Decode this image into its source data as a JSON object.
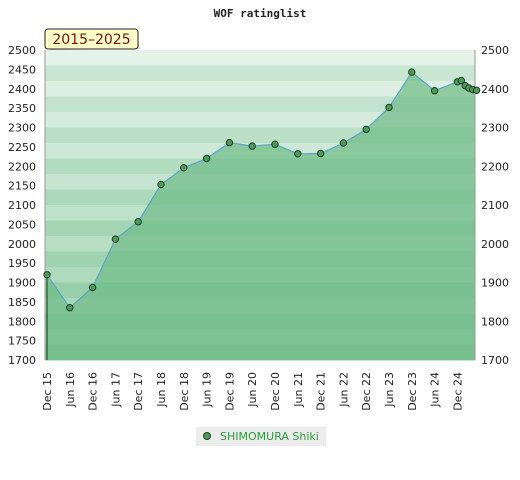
{
  "chart_data": {
    "type": "area",
    "title": "WOF ratinglist",
    "range_label": "2015–2025",
    "xlabel": "",
    "ylabel": "",
    "ylim": [
      1700,
      2500
    ],
    "yticks": [
      1700,
      1750,
      1800,
      1850,
      1900,
      1950,
      2000,
      2050,
      2100,
      2150,
      2200,
      2250,
      2300,
      2350,
      2400,
      2450,
      2500
    ],
    "yticks_right": [
      1700,
      1800,
      1900,
      2000,
      2100,
      2200,
      2300,
      2400,
      2500
    ],
    "x_labels": [
      "Dec 15",
      "Jun 16",
      "Dec 16",
      "Jun 17",
      "Dec 17",
      "Jun 18",
      "Dec 18",
      "Jun 19",
      "Dec 19",
      "Jun 20",
      "Dec 20",
      "Jun 21",
      "Dec 21",
      "Jun 22",
      "Dec 22",
      "Jun 23",
      "Dec 23",
      "Jun 24",
      "Dec 24"
    ],
    "grid": true,
    "legend_position": "bottom-center",
    "series": [
      {
        "name": "SHIMOMURA Shiki",
        "color": "#5aa6c8",
        "marker_color": "#4f9a5a",
        "points": [
          {
            "x": 0,
            "y": 1920
          },
          {
            "x": 1,
            "y": 1835
          },
          {
            "x": 2,
            "y": 1887
          },
          {
            "x": 3,
            "y": 2012
          },
          {
            "x": 4,
            "y": 2057
          },
          {
            "x": 5,
            "y": 2153
          },
          {
            "x": 6,
            "y": 2196
          },
          {
            "x": 7,
            "y": 2220
          },
          {
            "x": 8,
            "y": 2261
          },
          {
            "x": 9,
            "y": 2252
          },
          {
            "x": 10,
            "y": 2257
          },
          {
            "x": 11,
            "y": 2232
          },
          {
            "x": 12,
            "y": 2233
          },
          {
            "x": 13,
            "y": 2260
          },
          {
            "x": 14,
            "y": 2295
          },
          {
            "x": 15,
            "y": 2352
          },
          {
            "x": 16,
            "y": 2443
          },
          {
            "x": 17,
            "y": 2395
          },
          {
            "x": 18,
            "y": 2418
          },
          {
            "x": 18.17,
            "y": 2421
          },
          {
            "x": 18.34,
            "y": 2408
          },
          {
            "x": 18.5,
            "y": 2402
          },
          {
            "x": 18.67,
            "y": 2398
          },
          {
            "x": 18.84,
            "y": 2396
          }
        ]
      }
    ]
  }
}
